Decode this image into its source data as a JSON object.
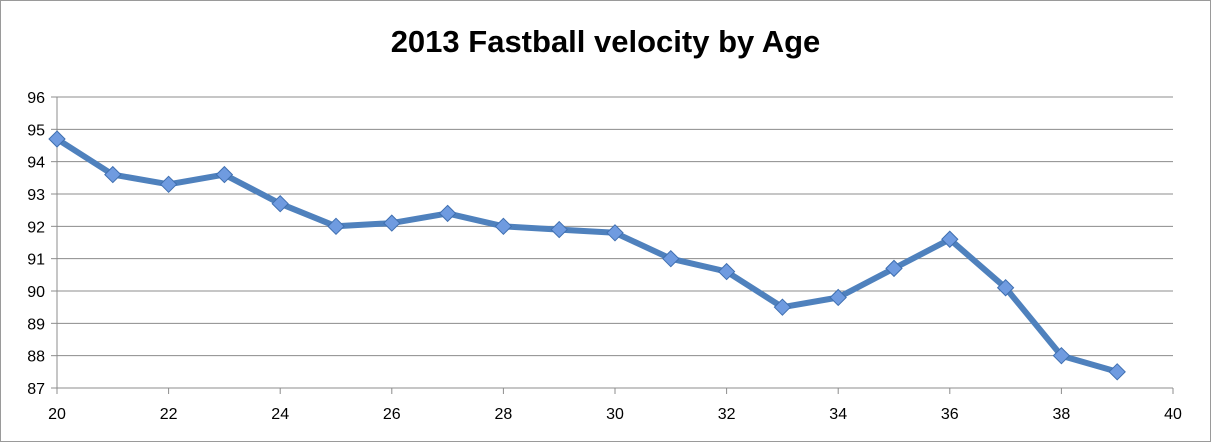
{
  "chart_data": {
    "type": "line",
    "title": "2013 Fastball velocity by Age",
    "xlabel": "",
    "ylabel": "",
    "xlim": [
      20,
      40
    ],
    "ylim": [
      87,
      96
    ],
    "x_ticks": [
      20,
      22,
      24,
      26,
      28,
      30,
      32,
      34,
      36,
      38,
      40
    ],
    "y_ticks": [
      87,
      88,
      89,
      90,
      91,
      92,
      93,
      94,
      95,
      96
    ],
    "grid": "horizontal",
    "legend": "none",
    "series": [
      {
        "color": "#4f81bd",
        "marker_color": "#6f9be0",
        "x": [
          20,
          21,
          22,
          23,
          24,
          25,
          26,
          27,
          28,
          29,
          30,
          31,
          32,
          33,
          34,
          35,
          36,
          37,
          38,
          39
        ],
        "y": [
          94.7,
          93.6,
          93.3,
          93.6,
          92.7,
          92.0,
          92.1,
          92.4,
          92.0,
          91.9,
          91.8,
          91.0,
          90.6,
          89.5,
          89.8,
          90.7,
          91.6,
          90.1,
          88.0,
          87.5
        ]
      }
    ]
  }
}
